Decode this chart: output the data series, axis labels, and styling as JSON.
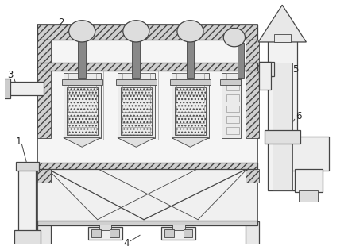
{
  "fig_width": 4.38,
  "fig_height": 3.15,
  "dpi": 100,
  "bg_color": "#ffffff",
  "line_color": "#444444",
  "light_gray": "#e8e8e8",
  "mid_gray": "#cccccc",
  "dark_gray": "#999999",
  "label_color": "#222222"
}
